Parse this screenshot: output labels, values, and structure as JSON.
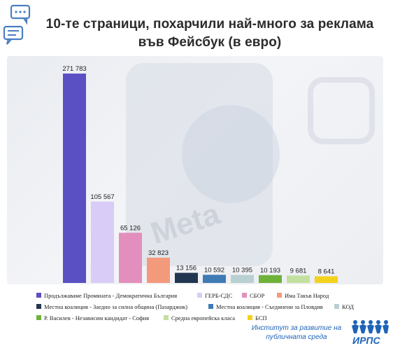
{
  "title_line1": "10-те страници, похарчили най-много за реклама",
  "title_line2": "във Фейсбук (в евро)",
  "logo": {
    "line1": "Институт за развитие на",
    "line2": "публичната среда",
    "abbr": "ИРПС"
  },
  "colors": {
    "title": "#2b2b2b",
    "speech_icon": "#4a7fc1",
    "logo": "#1e63b8"
  },
  "chart_data": {
    "type": "bar",
    "title": "10-те страници, похарчили най-много за реклама във Фейсбук (в евро)",
    "unit": "евро",
    "ylim": [
      0,
      280000
    ],
    "grid": false,
    "legend_placement": "bottom",
    "value_labels": true,
    "bars": [
      {
        "label": "Продължаваме Промяната - Демократична България",
        "value": 271783,
        "display": "271 783",
        "color": "#5b4fc4"
      },
      {
        "label": "ГЕРБ-СДС",
        "value": 105567,
        "display": "105 567",
        "color": "#d9ccf6"
      },
      {
        "label": "СБОР",
        "value": 65126,
        "display": "65 126",
        "color": "#e28fbe"
      },
      {
        "label": "Има Такъв Народ",
        "value": 32823,
        "display": "32 823",
        "color": "#f39a7c"
      },
      {
        "label": "Местна коалиция - Заедно за силна община (Пазарджик)",
        "value": 13156,
        "display": "13 156",
        "color": "#233650"
      },
      {
        "label": "Местна коалиция - Съединени за Пловдив",
        "value": 10592,
        "display": "10 592",
        "color": "#3f7bb5"
      },
      {
        "label": "КОД",
        "value": 10395,
        "display": "10 395",
        "color": "#b9d0d2"
      },
      {
        "label": "Р. Василев - Независим кандидат - София",
        "value": 10193,
        "display": "10 193",
        "color": "#6fb23a"
      },
      {
        "label": "Средна европейска класа",
        "value": 9681,
        "display": "9 681",
        "color": "#c3e0a0"
      },
      {
        "label": "БСП",
        "value": 8641,
        "display": "8 641",
        "color": "#f2d21c"
      }
    ]
  }
}
